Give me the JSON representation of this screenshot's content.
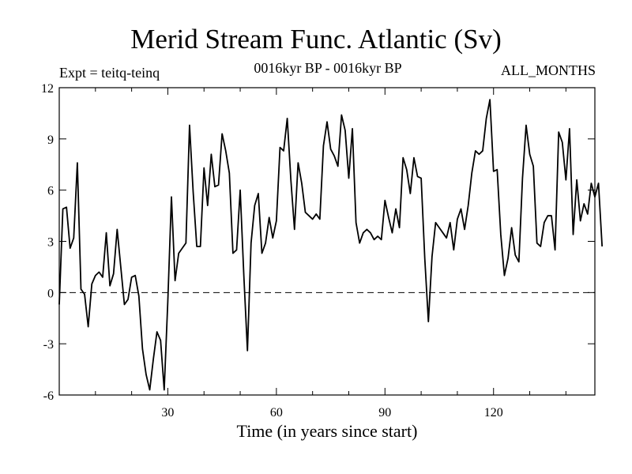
{
  "chart_data": {
    "type": "line",
    "title": "Merid Stream Func. Atlantic (Sv)",
    "subtitle_left": "Expt = teitq-teinq",
    "subtitle_center": "0016kyr BP - 0016kyr BP",
    "subtitle_right": "ALL_MONTHS",
    "xlabel": "Time (in years since start)",
    "ylabel": "",
    "xlim": [
      0,
      148
    ],
    "ylim": [
      -6,
      12
    ],
    "xticks_major": [
      30,
      60,
      90,
      120
    ],
    "xticks_minor": [
      10,
      20,
      40,
      50,
      70,
      80,
      100,
      110,
      130,
      140
    ],
    "yticks": [
      -6,
      -3,
      0,
      3,
      6,
      9,
      12
    ],
    "zero_line": "dashed",
    "grid": false,
    "line_color": "#000000",
    "series": [
      {
        "values": [
          -0.7,
          4.9,
          5.0,
          2.6,
          3.2,
          7.6,
          0.2,
          -0.1,
          -2.0,
          0.5,
          1.0,
          1.2,
          0.9,
          3.5,
          0.4,
          1.1,
          3.7,
          1.5,
          -0.7,
          -0.4,
          0.9,
          1.0,
          -0.2,
          -3.3,
          -4.8,
          -5.7,
          -3.9,
          -2.3,
          -2.8,
          -5.7,
          -0.5,
          5.6,
          0.7,
          2.3,
          2.6,
          2.9,
          9.8,
          5.9,
          2.7,
          2.7,
          7.3,
          5.1,
          8.1,
          6.2,
          6.3,
          9.3,
          8.3,
          7.0,
          2.3,
          2.5,
          6.0,
          1.0,
          -3.4,
          2.9,
          5.1,
          5.8,
          2.3,
          2.9,
          4.4,
          3.2,
          4.2,
          8.5,
          8.3,
          10.2,
          6.6,
          3.7,
          7.6,
          6.4,
          4.7,
          4.5,
          4.3,
          4.6,
          4.3,
          8.6,
          10.0,
          8.4,
          8.0,
          7.4,
          10.4,
          9.5,
          6.7,
          9.6,
          4.1,
          2.9,
          3.5,
          3.7,
          3.5,
          3.1,
          3.3,
          3.1,
          5.4,
          4.4,
          3.5,
          4.9,
          3.8,
          7.9,
          7.2,
          5.8,
          7.9,
          6.8,
          6.7,
          2.0,
          -1.7,
          2.1,
          4.1,
          3.8,
          3.5,
          3.2,
          4.1,
          2.5,
          4.3,
          4.9,
          3.7,
          5.1,
          7.0,
          8.3,
          8.1,
          8.3,
          10.2,
          11.3,
          7.1,
          7.2,
          3.4,
          1.0,
          2.0,
          3.8,
          2.2,
          1.8,
          6.7,
          9.8,
          8.1,
          7.4,
          2.9,
          2.7,
          4.1,
          4.5,
          4.5,
          2.5,
          9.4,
          8.8,
          6.6,
          9.6,
          3.4,
          6.6,
          4.2,
          5.2,
          4.6,
          6.4,
          5.6,
          6.4,
          2.7
        ]
      }
    ]
  }
}
